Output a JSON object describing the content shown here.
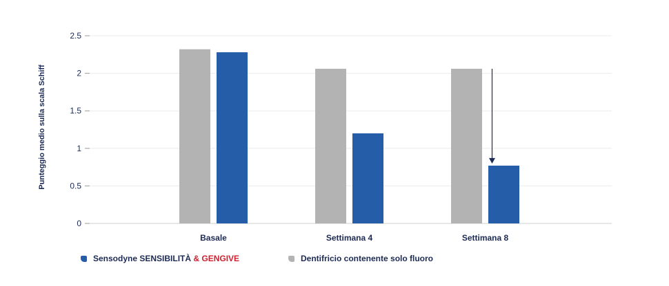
{
  "chart_data": {
    "type": "bar",
    "categories": [
      "Basale",
      "Settimana 4",
      "Settimana 8"
    ],
    "series": [
      {
        "name": "Dentifricio contenente solo fluoro",
        "color": "#b3b3b3",
        "values": [
          2.32,
          2.06,
          2.06
        ]
      },
      {
        "name": "Sensodyne SENSIBILITÀ & GENGIVE",
        "color": "#265da9",
        "values": [
          2.28,
          1.2,
          0.77
        ]
      }
    ],
    "ylabel": "Punteggio medio sulla scala Schiff",
    "xlabel": "",
    "ylim": [
      0,
      2.5
    ],
    "yticks": [
      "0",
      "0.5",
      "1",
      "1.5",
      "2",
      "2.5"
    ],
    "grid": true,
    "annotation": {
      "type": "arrow",
      "category": "Settimana 8",
      "from_value": 2.06,
      "to_value": 0.77,
      "color": "#1c2a54"
    }
  },
  "legend": {
    "sensodyne": {
      "part1": "Sensodyne SENSIBILITÀ",
      "part2": "& GENGIVE",
      "color": "#265da9",
      "accent": "#d0202e"
    },
    "fluoro": {
      "label": "Dentifricio contenente solo fluoro",
      "color": "#b3b3b3"
    }
  }
}
